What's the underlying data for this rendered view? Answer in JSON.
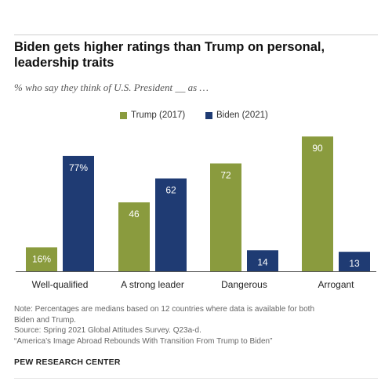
{
  "title": "Biden gets higher ratings than Trump on personal, leadership traits",
  "subtitle": "% who say they think of U.S. President __ as …",
  "legend": [
    {
      "label": "Trump (2017)",
      "color": "#8a9b3e"
    },
    {
      "label": "Biden (2021)",
      "color": "#1f3b73"
    }
  ],
  "notes": {
    "note_line1": "Note: Percentages are medians based on 12 countries where data is available for both",
    "note_line2": "Biden and Trump.",
    "source": "Source: Spring 2021 Global Attitudes Survey. Q23a-d.",
    "report": "“America’s Image Abroad Rebounds With Transition From Trump to Biden”"
  },
  "org": "PEW RESEARCH CENTER",
  "chart_data": {
    "type": "bar",
    "categories": [
      "Well-qualified",
      "A strong leader",
      "Dangerous",
      "Arrogant"
    ],
    "series": [
      {
        "name": "Trump (2017)",
        "color": "#8a9b3e",
        "values": [
          16,
          46,
          72,
          90
        ],
        "labels": [
          "16%",
          "46",
          "72",
          "90"
        ]
      },
      {
        "name": "Biden (2021)",
        "color": "#1f3b73",
        "values": [
          77,
          62,
          14,
          13
        ],
        "labels": [
          "77%",
          "62",
          "14",
          "13"
        ]
      }
    ],
    "ylim": [
      0,
      100
    ],
    "grid": false,
    "legend_position": "top"
  }
}
